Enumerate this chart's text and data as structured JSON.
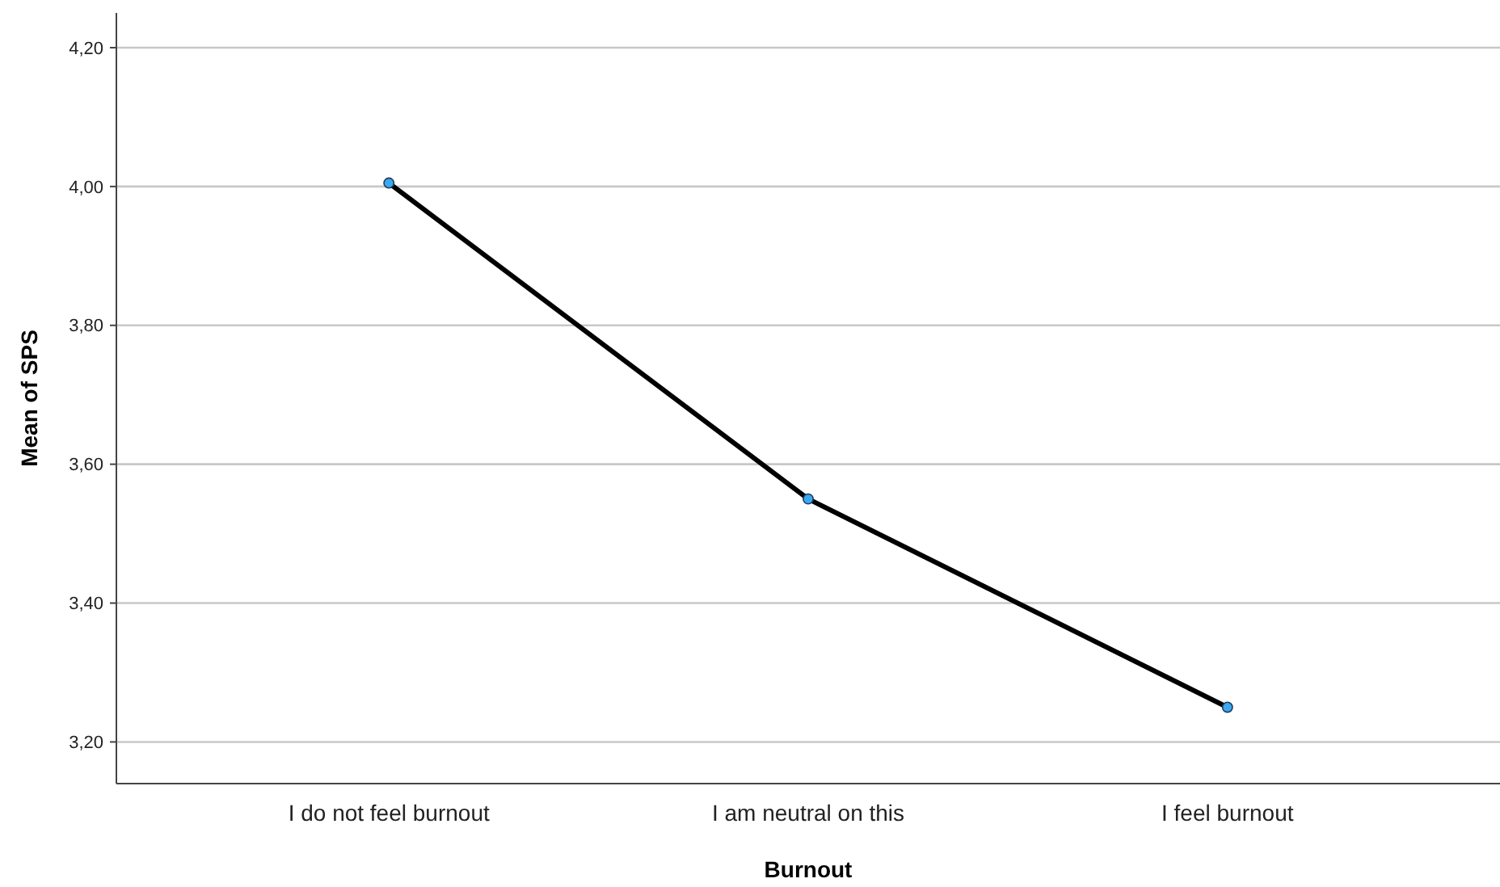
{
  "chart_data": {
    "type": "line",
    "xlabel": "Burnout",
    "ylabel": "Mean of SPS",
    "categories": [
      "I do not feel burnout",
      "I am neutral on this",
      "I feel burnout"
    ],
    "series": [
      {
        "color": "#000000",
        "values": [
          4.005,
          3.55,
          3.25
        ]
      }
    ],
    "ylim": [
      3.14,
      4.25
    ],
    "yticks": [
      {
        "value": 3.2,
        "label": "3,20"
      },
      {
        "value": 3.4,
        "label": "3,40"
      },
      {
        "value": 3.6,
        "label": "3,60"
      },
      {
        "value": 3.8,
        "label": "3,80"
      },
      {
        "value": 4.0,
        "label": "4,00"
      },
      {
        "value": 4.2,
        "label": "4,20"
      }
    ],
    "grid": "y",
    "marker": "circle"
  }
}
